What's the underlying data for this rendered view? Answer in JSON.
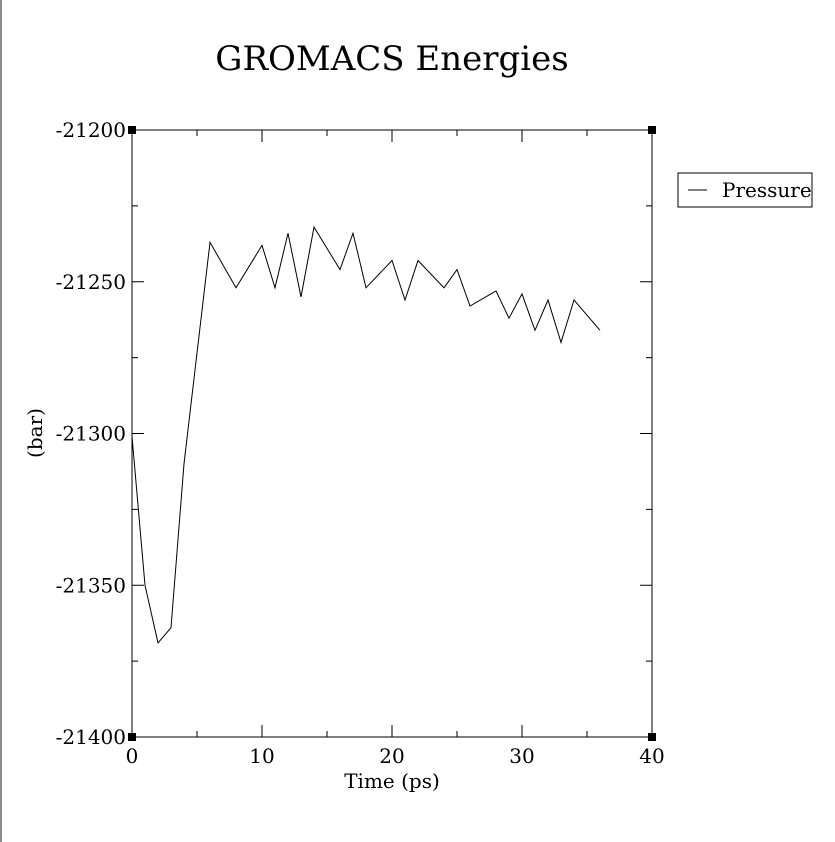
{
  "chart_data": {
    "type": "line",
    "title": "GROMACS Energies",
    "xlabel": "Time (ps)",
    "ylabel": "(bar)",
    "xlim": [
      0,
      40
    ],
    "ylim": [
      -21400,
      -21200
    ],
    "xticks": [
      0,
      10,
      20,
      30,
      40
    ],
    "yticks": [
      -21400,
      -21350,
      -21300,
      -21250,
      -21200
    ],
    "xtick_labels": [
      "0",
      "10",
      "20",
      "30",
      "40"
    ],
    "ytick_labels": [
      "-21400",
      "-21350",
      "-21300",
      "-21250",
      "-21200"
    ],
    "grid": false,
    "legend_position": "right",
    "series": [
      {
        "name": "Pressure",
        "color": "#000000",
        "x": [
          0,
          1,
          2,
          3,
          4,
          6,
          8,
          10,
          11,
          12,
          13,
          14,
          16,
          17,
          18,
          20,
          21,
          22,
          24,
          25,
          26,
          28,
          29,
          30,
          31,
          32,
          33,
          34,
          36
        ],
        "y": [
          -21301,
          -21350,
          -21369,
          -21364,
          -21310,
          -21237,
          -21252,
          -21238,
          -21252,
          -21234,
          -21255,
          -21232,
          -21246,
          -21234,
          -21252,
          -21243,
          -21256,
          -21243,
          -21252,
          -21246,
          -21258,
          -21253,
          -21262,
          -21254,
          -21266,
          -21256,
          -21270,
          -21256,
          -21266
        ]
      }
    ]
  }
}
